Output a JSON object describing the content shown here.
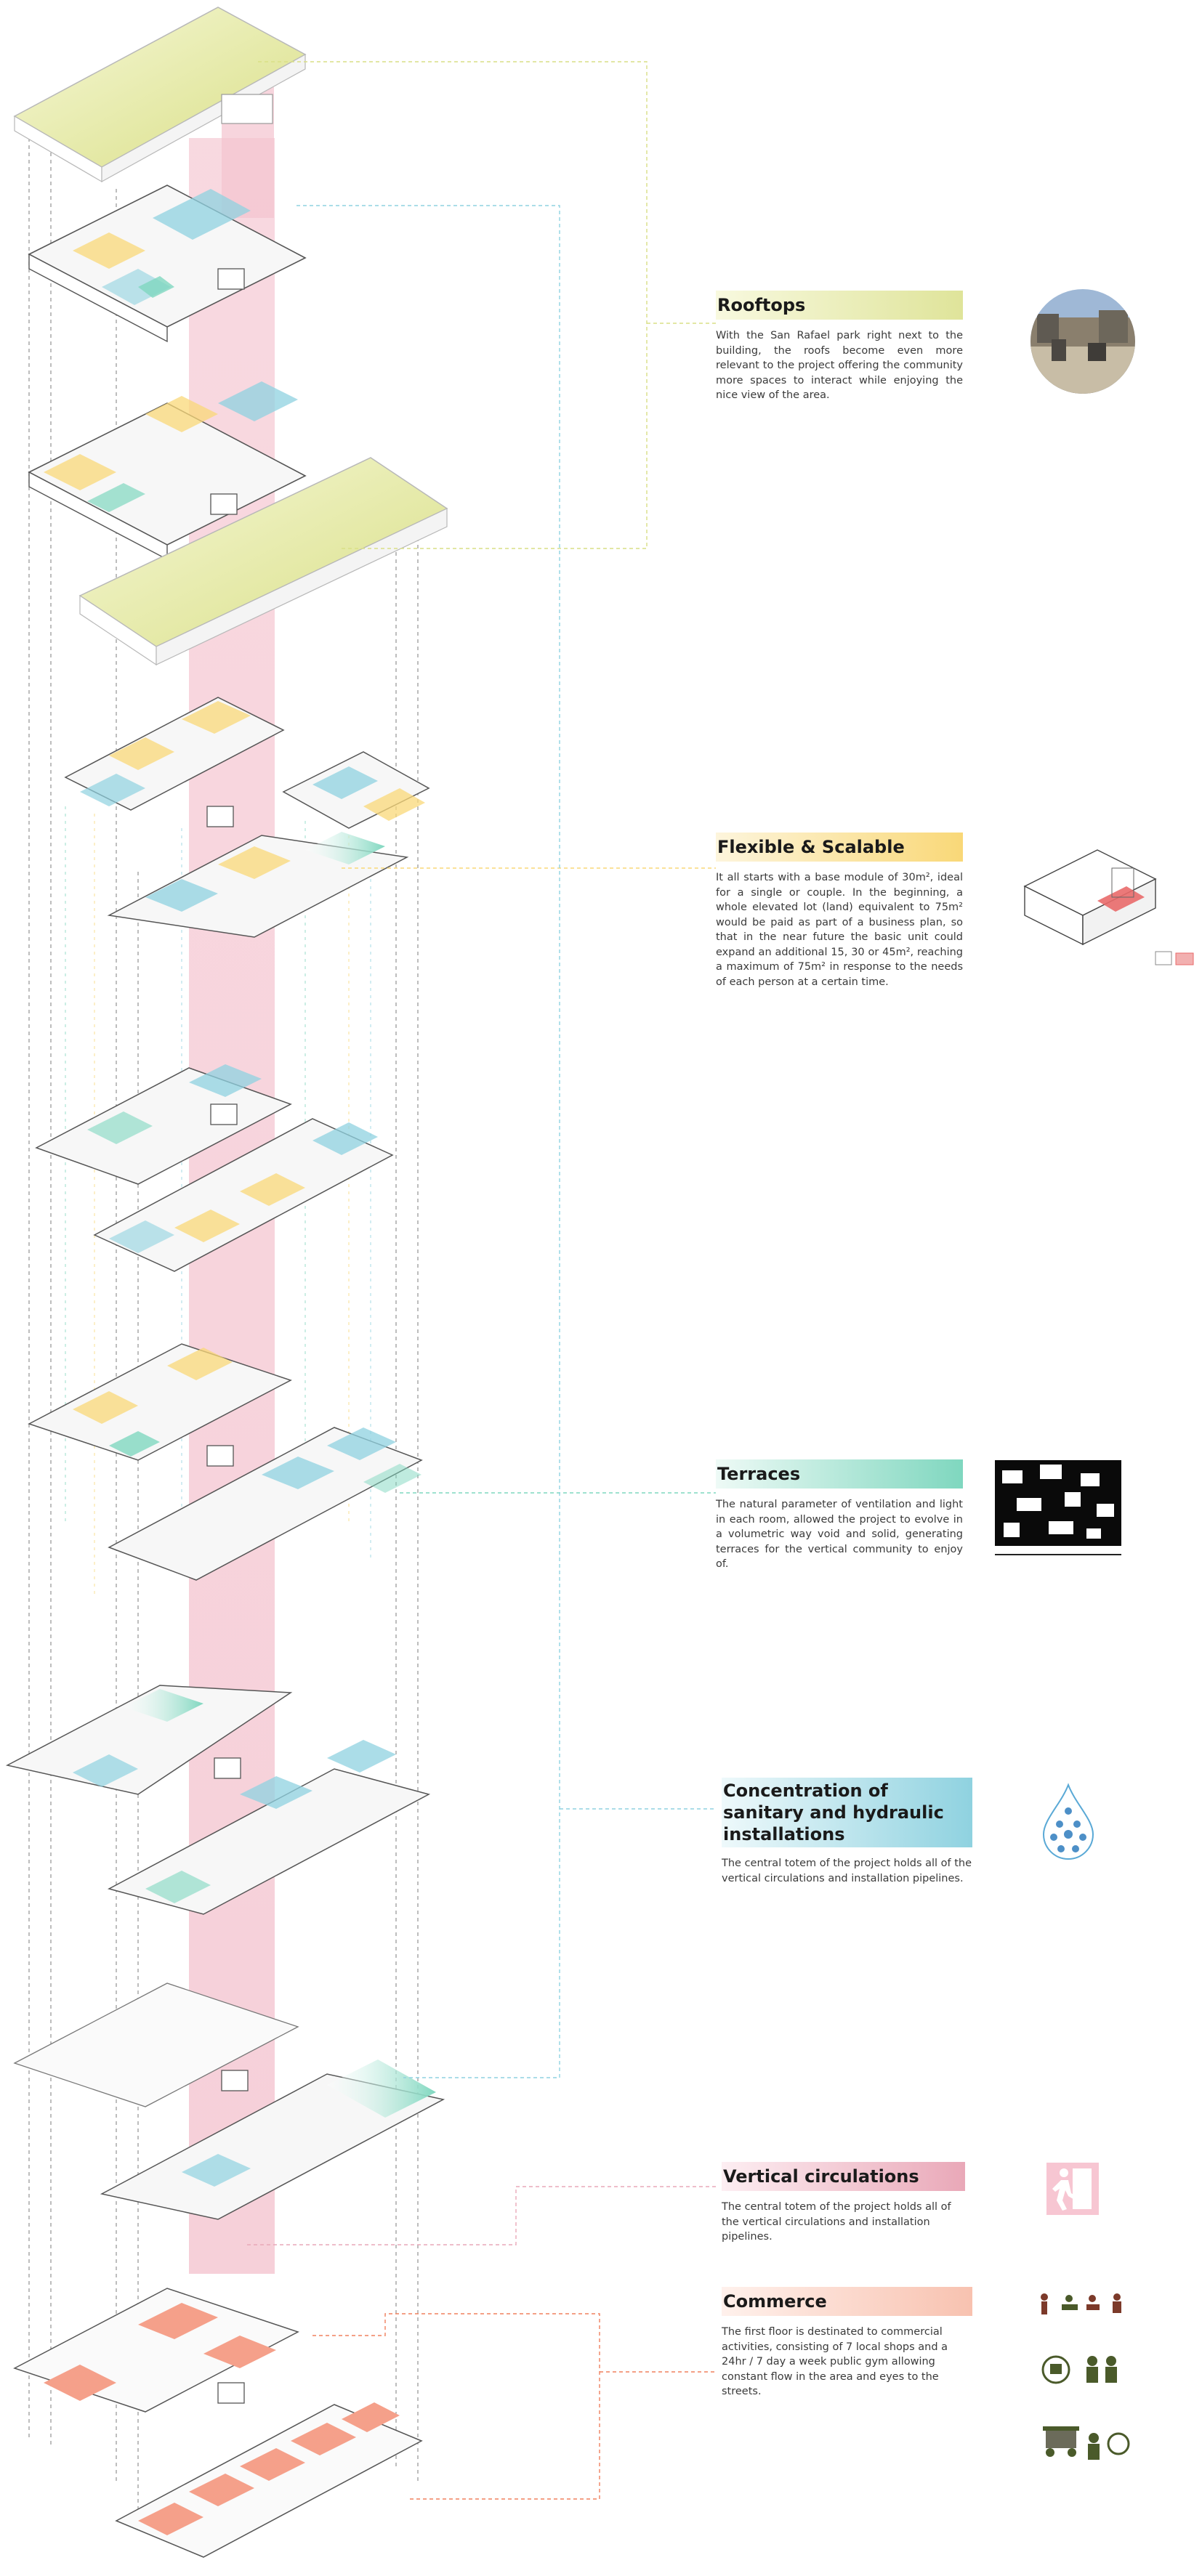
{
  "palette": {
    "yellow_green": "#dfe49a",
    "yellow": "#f9d878",
    "teal": "#7fd7bf",
    "blue": "#8fd2e0",
    "pink": "#f1b8c6",
    "salmon": "#f5a08a",
    "tower": "#f6d0d8"
  },
  "sections": [
    {
      "title": "Rooftops",
      "bar_colors": [
        "#f8f9df",
        "#dfe49a"
      ],
      "icon": "rooftop-photo",
      "text": "With the San Rafael park right next to the building, the roofs become even more relevant to the project offering the community more spaces to interact while enjoying the nice view of the area."
    },
    {
      "title": "Flexible & Scalable",
      "bar_colors": [
        "#fdf5dc",
        "#f9d878"
      ],
      "icon": "modular-unit-axonometric",
      "text": "It all starts with a base module of 30m², ideal for a single or couple. In the beginning, a whole elevated lot (land) equivalent to 75m² would be paid as part of a business plan, so that in the near future the basic unit could expand an additional 15, 30 or 45m², reaching a maximum of 75m² in response  to the needs of each person at a certain time."
    },
    {
      "title": "Terraces",
      "bar_colors": [
        "#eefaf6",
        "#7fd7bf"
      ],
      "icon": "void-solid-pattern",
      "text": "The natural parameter of ventilation and light in each room, allowed the project to evolve in a volumetric way void and solid, generating terraces for the vertical community to enjoy of."
    },
    {
      "title": "Concentration of sanitary and hydraulic installations",
      "bar_colors": [
        "#eef9fb",
        "#8fd2e0"
      ],
      "icon": "water-drop-icon",
      "text": "The central totem of the project holds all of the vertical circulations and installation pipelines."
    },
    {
      "title": "Vertical circulations",
      "bar_colors": [
        "#fdeef2",
        "#e9a8b8"
      ],
      "icon": "exit-door-icon",
      "text": "The central totem of the project holds all of the vertical circulations and installation pipelines."
    },
    {
      "title": "Commerce",
      "bar_colors": [
        "#fff1ec",
        "#f8c2b0"
      ],
      "icon": "commerce-icons",
      "text": "The first floor is destinated to commercial activities, consisting of 7 local shops and a 24hr / 7 day a week public gym allowing constant flow in the area and eyes to the streets."
    }
  ]
}
